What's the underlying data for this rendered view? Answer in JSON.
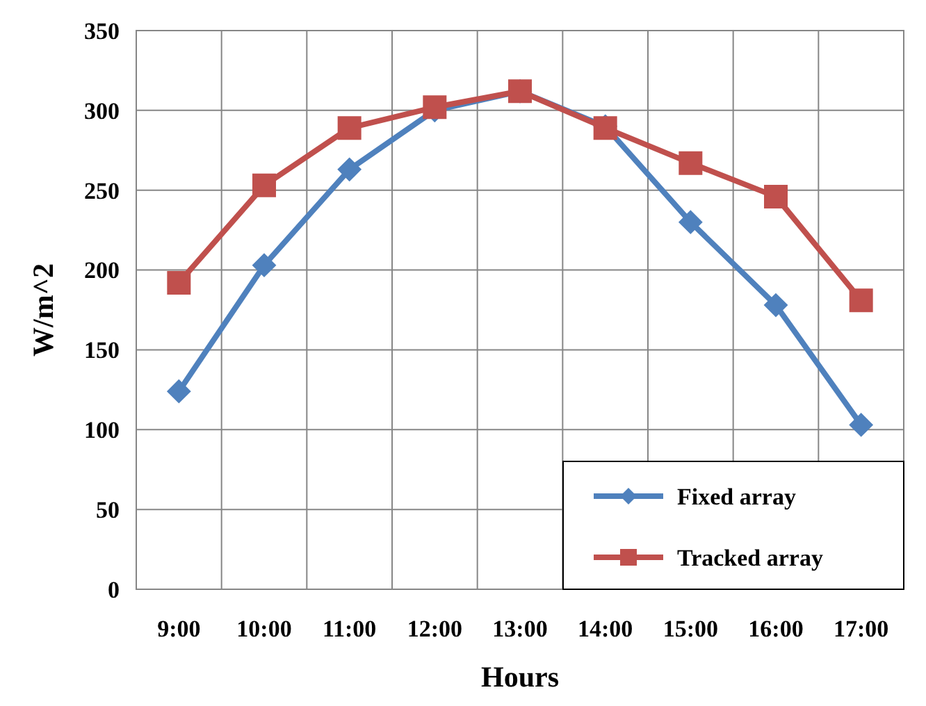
{
  "chart_data": {
    "type": "line",
    "xlabel": "Hours",
    "ylabel": "W/m^2",
    "categories": [
      "9:00",
      "10:00",
      "11:00",
      "12:00",
      "13:00",
      "14:00",
      "15:00",
      "16:00",
      "17:00"
    ],
    "series": [
      {
        "name": "Fixed array",
        "color": "#4f81bd",
        "marker": "diamond",
        "values": [
          124,
          203,
          263,
          300,
          312,
          290,
          230,
          178,
          103
        ]
      },
      {
        "name": "Tracked array",
        "color": "#c0504d",
        "marker": "square",
        "values": [
          192,
          253,
          289,
          302,
          312,
          289,
          267,
          246,
          181
        ]
      }
    ],
    "ylim": [
      0,
      350
    ],
    "yticks": [
      0,
      50,
      100,
      150,
      200,
      250,
      300,
      350
    ],
    "grid": true,
    "legend": "bottom right",
    "line_style": "solid"
  }
}
